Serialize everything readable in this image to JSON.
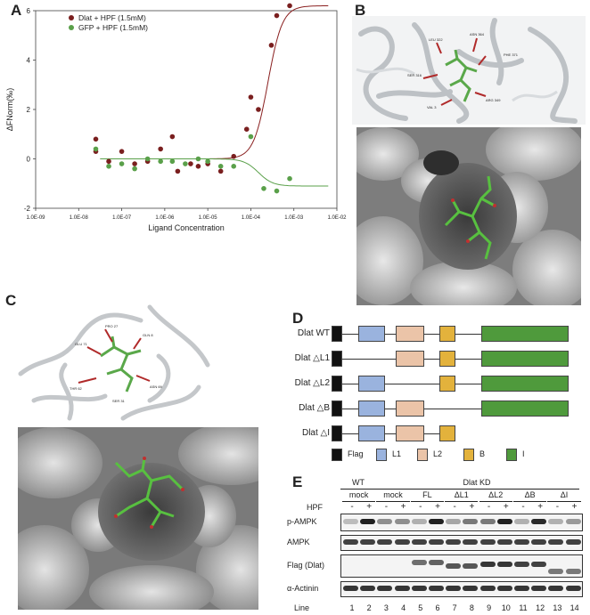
{
  "panels": {
    "a": "A",
    "b": "B",
    "c": "C",
    "d": "D",
    "e": "E"
  },
  "chart_data": {
    "type": "scatter",
    "xlabel": "Ligand Concentration",
    "ylabel": "ΔFNorm(‰)",
    "xscale": "log",
    "xlim": [
      1e-09,
      0.01
    ],
    "ylim": [
      -2,
      6
    ],
    "xticks": [
      "1.0E-09",
      "1.0E-08",
      "1.0E-07",
      "1.0E-06",
      "1.0E-05",
      "1.0E-04",
      "1.0E-03",
      "1.0E-02"
    ],
    "yticks": [
      "-2",
      "0",
      "2",
      "4",
      "6"
    ],
    "legend": "top-left",
    "series": [
      {
        "name": "Dlat + HPF (1.5mM)",
        "color": "#7a1f1f",
        "x": [
          2.5e-08,
          2.5e-08,
          5e-08,
          1e-07,
          2e-07,
          4e-07,
          8e-07,
          1.5e-06,
          2e-06,
          4e-06,
          6e-06,
          1e-05,
          2e-05,
          4e-05,
          8e-05,
          0.0001,
          0.00015,
          0.0003,
          0.0004,
          0.0008
        ],
        "y": [
          0.8,
          0.3,
          -0.1,
          0.3,
          -0.2,
          -0.1,
          0.4,
          0.9,
          -0.5,
          -0.2,
          -0.3,
          -0.2,
          -0.5,
          0.1,
          1.2,
          2.5,
          2.0,
          4.6,
          5.8,
          6.2
        ]
      },
      {
        "name": "GFP + HPF (1.5mM)",
        "color": "#5aa04a",
        "x": [
          2.5e-08,
          5e-08,
          1e-07,
          2e-07,
          4e-07,
          8e-07,
          1.5e-06,
          3e-06,
          6e-06,
          1e-05,
          2e-05,
          4e-05,
          0.0001,
          0.0002,
          0.0004,
          0.0008
        ],
        "y": [
          0.4,
          -0.3,
          -0.2,
          -0.4,
          0.0,
          -0.1,
          -0.1,
          -0.2,
          0.0,
          -0.1,
          -0.3,
          -0.3,
          0.9,
          -1.2,
          -1.3,
          -0.8
        ]
      }
    ],
    "fits": [
      {
        "color": "#8a2020",
        "type": "sigmoid-up",
        "plateau_low": 0.0,
        "plateau_high": 6.2,
        "midpoint": 0.00025
      },
      {
        "color": "#5aa04a",
        "type": "sigmoid-down",
        "plateau_low": -1.1,
        "plateau_high": 0.0,
        "midpoint": 0.00015
      }
    ]
  },
  "b_labels": [
    "LEU 322",
    "ASN 364",
    "PHE 371",
    "SER 316",
    "ARG 349",
    "VAL 3"
  ],
  "c_labels": [
    "PRO 27",
    "GLU 71",
    "GLN 8",
    "THR 62",
    "ASN 69",
    "SER 31"
  ],
  "constructs": {
    "rows": [
      {
        "label": "Dlat WT",
        "segments": [
          "flag",
          "L1",
          "L2",
          "B",
          "I"
        ]
      },
      {
        "label": "Dlat △L1",
        "segments": [
          "flag",
          "L2",
          "B",
          "I"
        ]
      },
      {
        "label": "Dlat △L2",
        "segments": [
          "flag",
          "L1",
          "B",
          "I"
        ]
      },
      {
        "label": "Dlat △B",
        "segments": [
          "flag",
          "L1",
          "L2",
          "I"
        ]
      },
      {
        "label": "Dlat △I",
        "segments": [
          "flag",
          "L1",
          "L2",
          "B"
        ]
      }
    ],
    "legend": [
      {
        "key": "flag",
        "label": "Flag",
        "color": "#111111"
      },
      {
        "key": "L1",
        "label": "L1",
        "color": "#9ab3de"
      },
      {
        "key": "L2",
        "label": "L2",
        "color": "#ebc4a8"
      },
      {
        "key": "B",
        "label": "B",
        "color": "#e3b23c"
      },
      {
        "key": "I",
        "label": "I",
        "color": "#4f9a3c"
      }
    ]
  },
  "western": {
    "header_wt": "WT",
    "header_kd": "Dlat KD",
    "groups": [
      "mock",
      "mock",
      "FL",
      "ΔL1",
      "ΔL2",
      "ΔB",
      "ΔI"
    ],
    "hpf_label": "HPF",
    "hpf_signs": [
      "-",
      "+",
      "-",
      "+",
      "-",
      "+",
      "-",
      "+",
      "-",
      "+",
      "-",
      "+",
      "-",
      "+"
    ],
    "rows": [
      "p-AMPK",
      "AMPK",
      "Flag (Dlat)",
      "α-Actinin"
    ],
    "line_label": "Line",
    "lanes": [
      "1",
      "2",
      "3",
      "4",
      "5",
      "6",
      "7",
      "8",
      "9",
      "10",
      "11",
      "12",
      "13",
      "14"
    ],
    "band_intensity": {
      "p-AMPK": [
        0.25,
        0.95,
        0.45,
        0.45,
        0.3,
        0.95,
        0.35,
        0.55,
        0.55,
        0.95,
        0.3,
        0.9,
        0.3,
        0.4
      ],
      "AMPK": [
        0.8,
        0.8,
        0.8,
        0.8,
        0.8,
        0.8,
        0.8,
        0.8,
        0.8,
        0.8,
        0.8,
        0.8,
        0.8,
        0.8
      ],
      "Flag (Dlat)": [
        0,
        0,
        0,
        0,
        0.6,
        0.65,
        0.7,
        0.7,
        0.85,
        0.85,
        0.8,
        0.8,
        0.55,
        0.55
      ],
      "α-Actinin": [
        0.85,
        0.85,
        0.85,
        0.85,
        0.85,
        0.85,
        0.85,
        0.85,
        0.85,
        0.85,
        0.85,
        0.85,
        0.85,
        0.85
      ]
    }
  }
}
